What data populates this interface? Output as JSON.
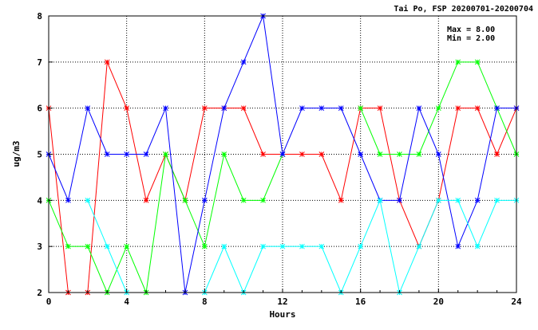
{
  "chart_data": {
    "type": "line",
    "title": "Tai Po, FSP 20200701-20200704",
    "xlabel": "Hours",
    "ylabel": "ug/m3",
    "xlim": [
      0,
      24
    ],
    "ylim": [
      2,
      8
    ],
    "x_ticks": [
      0,
      4,
      8,
      12,
      16,
      20,
      24
    ],
    "y_ticks": [
      2,
      3,
      4,
      5,
      6,
      7,
      8
    ],
    "grid": true,
    "annotations": [
      "Max = 8.00",
      "Min = 2.00"
    ],
    "x": [
      0,
      1,
      2,
      3,
      4,
      5,
      6,
      7,
      8,
      9,
      10,
      11,
      12,
      13,
      14,
      15,
      16,
      17,
      18,
      19,
      20,
      21,
      22,
      23,
      24
    ],
    "series": [
      {
        "color": "#ff0000",
        "values": [
          6,
          2,
          2,
          7,
          6,
          4,
          5,
          4,
          6,
          6,
          6,
          5,
          5,
          5,
          5,
          4,
          6,
          6,
          4,
          3,
          4,
          6,
          6,
          5,
          6
        ]
      },
      {
        "color": "#00ff00",
        "values": [
          4,
          3,
          3,
          2,
          3,
          2,
          5,
          4,
          3,
          5,
          4,
          4,
          5,
          null,
          null,
          null,
          6,
          5,
          5,
          5,
          6,
          7,
          7,
          6,
          5
        ]
      },
      {
        "color": "#0000ff",
        "values": [
          5,
          4,
          6,
          5,
          5,
          5,
          6,
          2,
          4,
          6,
          7,
          8,
          5,
          6,
          6,
          6,
          5,
          4,
          4,
          6,
          5,
          3,
          4,
          6,
          6
        ]
      },
      {
        "color": "#00ffff",
        "values": [
          null,
          null,
          4,
          3,
          2,
          null,
          null,
          null,
          2,
          3,
          2,
          3,
          3,
          3,
          3,
          2,
          3,
          4,
          2,
          3,
          4,
          4,
          3,
          4,
          4
        ]
      }
    ]
  }
}
